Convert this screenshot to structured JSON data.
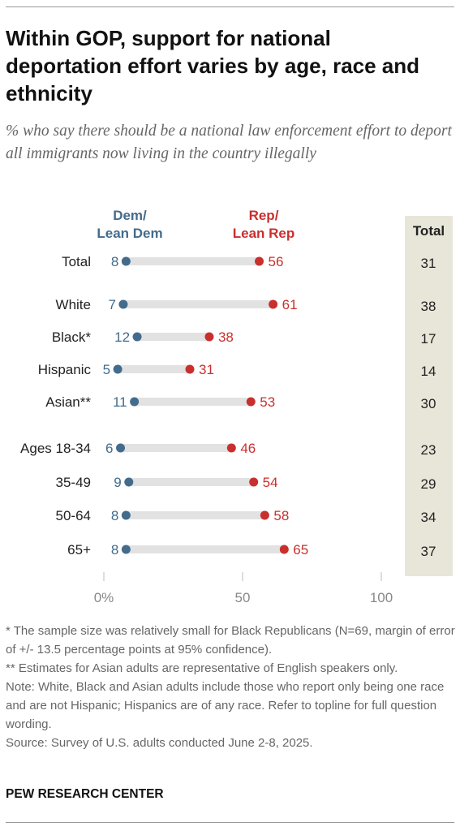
{
  "title": "Within GOP, support for national deportation effort varies by age, race and ethnicity",
  "subtitle": "% who say there should be a national law enforcement effort to deport all immigrants now living in the country illegally",
  "legend": {
    "dem_line1": "Dem/",
    "dem_line2": "Lean Dem",
    "rep_line1": "Rep/",
    "rep_line2": "Lean Rep",
    "total": "Total"
  },
  "colors": {
    "dem": "#436b8c",
    "rep": "#c8302e",
    "bar": "#e2e2e2",
    "total_bg": "#e8e6d9"
  },
  "chart_data": {
    "type": "dot",
    "categories": [
      "Total",
      "White",
      "Black*",
      "Hispanic",
      "Asian**",
      "Ages 18-34",
      "35-49",
      "50-64",
      "65+"
    ],
    "series": [
      {
        "name": "Dem/ Lean Dem",
        "values": [
          8,
          7,
          12,
          5,
          11,
          6,
          9,
          8,
          8
        ]
      },
      {
        "name": "Rep/ Lean Rep",
        "values": [
          56,
          61,
          38,
          31,
          53,
          46,
          54,
          58,
          65
        ]
      },
      {
        "name": "Total",
        "values": [
          31,
          38,
          17,
          14,
          30,
          23,
          29,
          34,
          37
        ]
      }
    ],
    "xlim": [
      0,
      100
    ],
    "xticks": [
      "0%",
      "50",
      "100"
    ]
  },
  "footnotes": [
    "* The sample size was relatively small for Black Republicans (N=69, margin of error of +/- 13.5 percentage points at 95% confidence).",
    "** Estimates for Asian adults are representative of English speakers only.",
    "Note: White, Black and Asian adults include those who report only being one race and are not Hispanic; Hispanics are of any race. Refer to topline for full question wording.",
    "Source: Survey of U.S. adults conducted June 2-8, 2025."
  ],
  "source_brand": "PEW RESEARCH CENTER"
}
